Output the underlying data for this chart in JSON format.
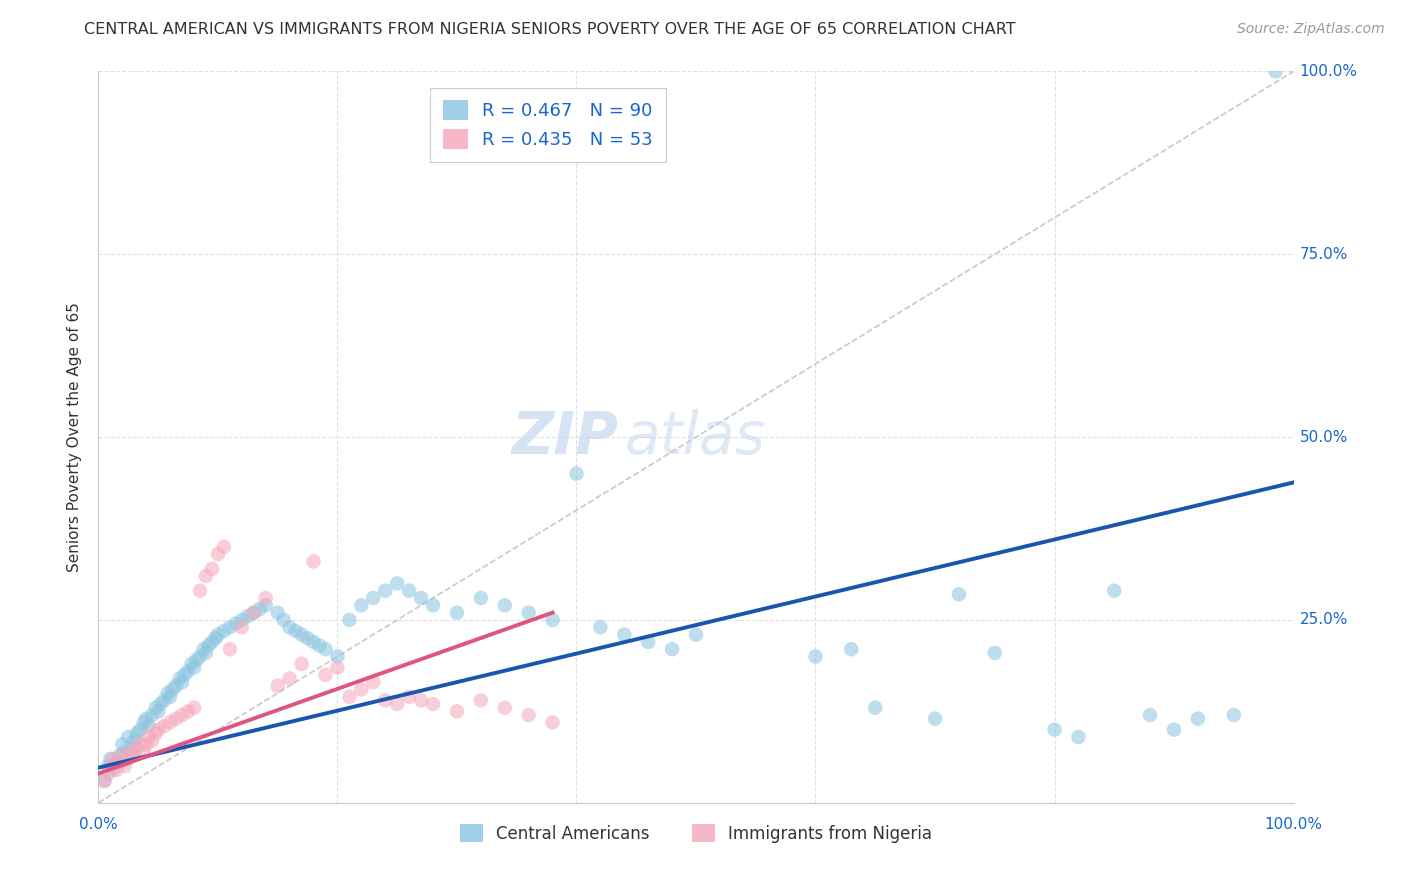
{
  "title": "CENTRAL AMERICAN VS IMMIGRANTS FROM NIGERIA SENIORS POVERTY OVER THE AGE OF 65 CORRELATION CHART",
  "source": "Source: ZipAtlas.com",
  "ylabel": "Seniors Poverty Over the Age of 65",
  "xlim": [
    0.0,
    1.0
  ],
  "ylim": [
    0.0,
    1.0
  ],
  "xticks": [
    0.0,
    0.2,
    0.4,
    0.6,
    0.8,
    1.0
  ],
  "yticks": [
    0.0,
    0.25,
    0.5,
    0.75,
    1.0
  ],
  "xticklabels_left": "0.0%",
  "xticklabels_right": "100.0%",
  "yticklabels": [
    "25.0%",
    "50.0%",
    "75.0%",
    "100.0%"
  ],
  "ytick_positions": [
    0.25,
    0.5,
    0.75,
    1.0
  ],
  "blue_R": 0.467,
  "blue_N": 90,
  "pink_R": 0.435,
  "pink_N": 53,
  "blue_color": "#89c4e1",
  "pink_color": "#f4a7b9",
  "blue_edge_color": "#89c4e1",
  "pink_edge_color": "#f4a7b9",
  "blue_line_color": "#1a56b0",
  "pink_line_color": "#e05580",
  "diagonal_color": "#c8c8c8",
  "grid_color": "#e0e0e0",
  "watermark_zip": "ZIP",
  "watermark_atlas": "atlas",
  "legend_label_blue": "Central Americans",
  "legend_label_pink": "Immigrants from Nigeria",
  "blue_scatter_x": [
    0.005,
    0.008,
    0.01,
    0.012,
    0.015,
    0.018,
    0.02,
    0.022,
    0.025,
    0.028,
    0.03,
    0.032,
    0.035,
    0.038,
    0.04,
    0.042,
    0.045,
    0.048,
    0.05,
    0.052,
    0.055,
    0.058,
    0.06,
    0.062,
    0.065,
    0.068,
    0.07,
    0.072,
    0.075,
    0.078,
    0.08,
    0.082,
    0.085,
    0.088,
    0.09,
    0.092,
    0.095,
    0.098,
    0.1,
    0.105,
    0.11,
    0.115,
    0.12,
    0.125,
    0.13,
    0.135,
    0.14,
    0.15,
    0.155,
    0.16,
    0.165,
    0.17,
    0.175,
    0.18,
    0.185,
    0.19,
    0.2,
    0.21,
    0.22,
    0.23,
    0.24,
    0.25,
    0.26,
    0.27,
    0.28,
    0.3,
    0.32,
    0.34,
    0.36,
    0.38,
    0.4,
    0.42,
    0.44,
    0.46,
    0.48,
    0.5,
    0.6,
    0.63,
    0.65,
    0.7,
    0.72,
    0.75,
    0.8,
    0.82,
    0.85,
    0.88,
    0.9,
    0.92,
    0.95,
    0.985
  ],
  "blue_scatter_y": [
    0.03,
    0.05,
    0.06,
    0.045,
    0.055,
    0.065,
    0.08,
    0.07,
    0.09,
    0.075,
    0.085,
    0.095,
    0.1,
    0.11,
    0.115,
    0.105,
    0.12,
    0.13,
    0.125,
    0.135,
    0.14,
    0.15,
    0.145,
    0.155,
    0.16,
    0.17,
    0.165,
    0.175,
    0.18,
    0.19,
    0.185,
    0.195,
    0.2,
    0.21,
    0.205,
    0.215,
    0.22,
    0.225,
    0.23,
    0.235,
    0.24,
    0.245,
    0.25,
    0.255,
    0.26,
    0.265,
    0.27,
    0.26,
    0.25,
    0.24,
    0.235,
    0.23,
    0.225,
    0.22,
    0.215,
    0.21,
    0.2,
    0.25,
    0.27,
    0.28,
    0.29,
    0.3,
    0.29,
    0.28,
    0.27,
    0.26,
    0.28,
    0.27,
    0.26,
    0.25,
    0.45,
    0.24,
    0.23,
    0.22,
    0.21,
    0.23,
    0.2,
    0.21,
    0.13,
    0.115,
    0.285,
    0.205,
    0.1,
    0.09,
    0.29,
    0.12,
    0.1,
    0.115,
    0.12,
    1.0
  ],
  "pink_scatter_x": [
    0.005,
    0.008,
    0.01,
    0.012,
    0.015,
    0.018,
    0.02,
    0.022,
    0.025,
    0.028,
    0.03,
    0.032,
    0.035,
    0.038,
    0.04,
    0.042,
    0.045,
    0.048,
    0.05,
    0.055,
    0.06,
    0.065,
    0.07,
    0.075,
    0.08,
    0.085,
    0.09,
    0.095,
    0.1,
    0.105,
    0.11,
    0.12,
    0.13,
    0.14,
    0.15,
    0.16,
    0.17,
    0.18,
    0.19,
    0.2,
    0.21,
    0.22,
    0.23,
    0.24,
    0.25,
    0.26,
    0.27,
    0.28,
    0.3,
    0.32,
    0.34,
    0.36,
    0.38
  ],
  "pink_scatter_y": [
    0.03,
    0.04,
    0.05,
    0.06,
    0.045,
    0.055,
    0.065,
    0.05,
    0.06,
    0.07,
    0.065,
    0.075,
    0.08,
    0.07,
    0.08,
    0.09,
    0.085,
    0.095,
    0.1,
    0.105,
    0.11,
    0.115,
    0.12,
    0.125,
    0.13,
    0.29,
    0.31,
    0.32,
    0.34,
    0.35,
    0.21,
    0.24,
    0.26,
    0.28,
    0.16,
    0.17,
    0.19,
    0.33,
    0.175,
    0.185,
    0.145,
    0.155,
    0.165,
    0.14,
    0.135,
    0.145,
    0.14,
    0.135,
    0.125,
    0.14,
    0.13,
    0.12,
    0.11
  ],
  "blue_line_x": [
    0.0,
    1.0
  ],
  "blue_line_y": [
    0.048,
    0.438
  ],
  "pink_line_x": [
    0.0,
    0.38
  ],
  "pink_line_y": [
    0.04,
    0.26
  ],
  "title_fontsize": 11.5,
  "axis_label_fontsize": 11,
  "tick_fontsize": 11,
  "legend_fontsize": 13,
  "watermark_fontsize_zip": 42,
  "watermark_fontsize_atlas": 42,
  "source_fontsize": 10,
  "background_color": "#ffffff",
  "tick_color": "#1a66cc",
  "text_color": "#333333",
  "source_color": "#999999"
}
